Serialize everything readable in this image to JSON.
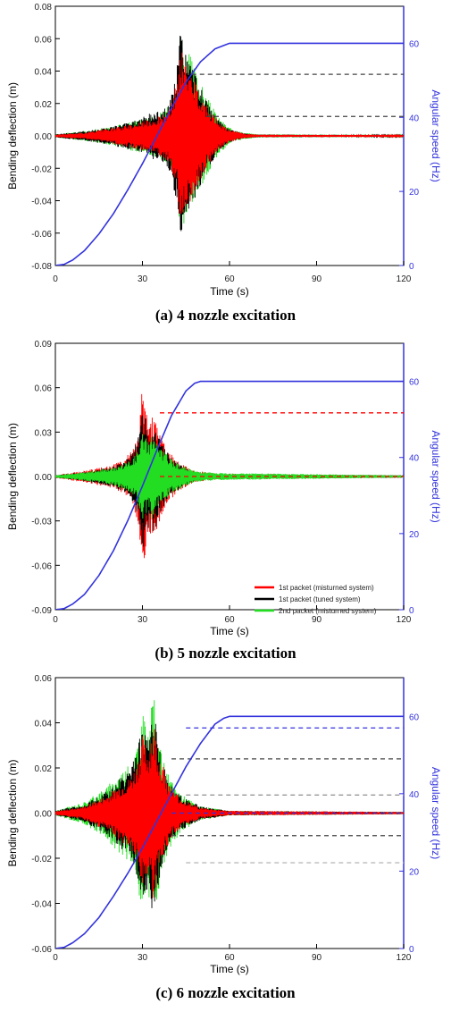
{
  "chart_data": [
    {
      "type": "line",
      "caption": "(a) 4 nozzle excitation",
      "xlabel": "Time (s)",
      "ylabel": "Bending deflection (m)",
      "y2label": "Angular speed (Hz)",
      "xlim": [
        0,
        120
      ],
      "ylim": [
        -0.08,
        0.08
      ],
      "y2lim": [
        0,
        70
      ],
      "xticks": [
        "0",
        "30",
        "60",
        "90",
        "120"
      ],
      "yticks": [
        "-0.08",
        "-0.06",
        "-0.04",
        "-0.02",
        "0.00",
        "0.02",
        "0.04",
        "0.06",
        "0.08"
      ],
      "y2ticks": [
        "0",
        "20",
        "40",
        "60"
      ],
      "legend": [],
      "series": [
        {
          "role": "deflection-envelope",
          "color": "#22dd22",
          "x": [
            0,
            10,
            20,
            28,
            34,
            38,
            40,
            42,
            43,
            44,
            46,
            48,
            52,
            56,
            60,
            65,
            70,
            120
          ],
          "y": [
            0.001,
            0.003,
            0.006,
            0.01,
            0.013,
            0.016,
            0.022,
            0.04,
            0.066,
            0.06,
            0.052,
            0.042,
            0.025,
            0.012,
            0.005,
            0.002,
            0.001,
            0.0005
          ]
        },
        {
          "role": "deflection-envelope",
          "color": "#000000",
          "x": [
            0,
            10,
            20,
            28,
            34,
            38,
            40,
            42,
            43,
            44,
            46,
            48,
            52,
            56,
            60,
            65,
            70,
            120
          ],
          "y": [
            0.001,
            0.003,
            0.006,
            0.01,
            0.015,
            0.018,
            0.025,
            0.045,
            0.07,
            0.06,
            0.05,
            0.04,
            0.022,
            0.01,
            0.004,
            0.0015,
            0.0008,
            0.0005
          ]
        },
        {
          "role": "deflection-envelope",
          "color": "#ff0000",
          "x": [
            0,
            10,
            20,
            28,
            34,
            38,
            40,
            42,
            43,
            44,
            46,
            48,
            52,
            56,
            60,
            65,
            70,
            120
          ],
          "y": [
            0.0008,
            0.002,
            0.005,
            0.008,
            0.011,
            0.014,
            0.02,
            0.035,
            0.055,
            0.05,
            0.043,
            0.035,
            0.02,
            0.009,
            0.004,
            0.0015,
            0.0008,
            0.0005
          ]
        },
        {
          "role": "angular-speed",
          "color": "#3333dd",
          "x": [
            0,
            3,
            6,
            10,
            15,
            20,
            25,
            30,
            35,
            40,
            45,
            50,
            55,
            60,
            120
          ],
          "y": [
            0,
            0.3,
            1.5,
            4,
            8.5,
            14,
            20.5,
            27.5,
            35,
            42.5,
            49.5,
            55,
            58.5,
            60,
            60
          ]
        }
      ],
      "dashed_lines": [
        {
          "y": 0.038,
          "x_start": 47,
          "x_end": 120,
          "color": "#444444"
        },
        {
          "y": 0.012,
          "x_start": 52,
          "x_end": 120,
          "color": "#444444"
        }
      ]
    },
    {
      "type": "line",
      "caption": "(b) 5 nozzle excitation",
      "xlabel": "Time (s)",
      "ylabel": "Bending deflection (m)",
      "y2label": "Angular speed (Hz)",
      "xlim": [
        0,
        120
      ],
      "ylim": [
        -0.09,
        0.09
      ],
      "y2lim": [
        0,
        70
      ],
      "xticks": [
        "0",
        "30",
        "60",
        "90",
        "120"
      ],
      "yticks": [
        "-0.09",
        "-0.06",
        "-0.03",
        "0.00",
        "0.03",
        "0.06",
        "0.09"
      ],
      "y2ticks": [
        "0",
        "20",
        "40",
        "60"
      ],
      "legend": [
        "1st packet (misturned system)",
        "1st packet (tuned system)",
        "2nd packet (misturned system)"
      ],
      "series": [
        {
          "role": "deflection-envelope",
          "color": "#ff0000",
          "name": "1st packet (misturned system)",
          "x": [
            0,
            10,
            20,
            24,
            27,
            29,
            30,
            31,
            32,
            33,
            34,
            35,
            36,
            38,
            40,
            44,
            48,
            55,
            120
          ],
          "y": [
            0.001,
            0.004,
            0.008,
            0.012,
            0.02,
            0.04,
            0.07,
            0.05,
            0.035,
            0.04,
            0.045,
            0.035,
            0.03,
            0.02,
            0.015,
            0.008,
            0.004,
            0.002,
            0.0008
          ]
        },
        {
          "role": "deflection-envelope",
          "color": "#000000",
          "name": "1st packet (tuned system)",
          "x": [
            0,
            10,
            20,
            24,
            27,
            29,
            30,
            31,
            32,
            33,
            34,
            35,
            36,
            38,
            40,
            44,
            48,
            55,
            120
          ],
          "y": [
            0.0008,
            0.003,
            0.007,
            0.011,
            0.018,
            0.03,
            0.05,
            0.045,
            0.035,
            0.03,
            0.04,
            0.032,
            0.025,
            0.018,
            0.012,
            0.007,
            0.003,
            0.0015,
            0.0008
          ]
        },
        {
          "role": "deflection-envelope",
          "color": "#22dd22",
          "name": "2nd packet (misturned system)",
          "x": [
            0,
            10,
            20,
            24,
            27,
            29,
            30,
            31,
            32,
            33,
            34,
            35,
            36,
            38,
            40,
            44,
            48,
            55,
            120
          ],
          "y": [
            0.0008,
            0.003,
            0.006,
            0.009,
            0.013,
            0.02,
            0.03,
            0.028,
            0.025,
            0.028,
            0.03,
            0.022,
            0.02,
            0.016,
            0.012,
            0.007,
            0.004,
            0.0025,
            0.0008
          ]
        },
        {
          "role": "angular-speed",
          "color": "#3333dd",
          "x": [
            0,
            3,
            6,
            10,
            15,
            20,
            25,
            30,
            35,
            40,
            45,
            48,
            50,
            120
          ],
          "y": [
            0,
            0.3,
            1.5,
            4,
            9,
            15.5,
            23.5,
            32.5,
            42,
            51,
            57.5,
            59.5,
            60,
            60
          ]
        }
      ],
      "dashed_lines": [
        {
          "y": 0.043,
          "x_start": 36,
          "x_end": 120,
          "color": "#ff0000"
        },
        {
          "y": 0.0,
          "x_start": 36,
          "x_end": 120,
          "color": "#ff0000"
        }
      ]
    },
    {
      "type": "line",
      "caption": "(c) 6 nozzle excitation",
      "xlabel": "Time (s)",
      "ylabel": "Bending deflection (m)",
      "y2label": "Angular speed (Hz)",
      "xlim": [
        0,
        120
      ],
      "ylim": [
        -0.06,
        0.06
      ],
      "y2lim": [
        0,
        70
      ],
      "xticks": [
        "0",
        "30",
        "60",
        "90",
        "120"
      ],
      "yticks": [
        "-0.06",
        "-0.04",
        "-0.02",
        "0.00",
        "0.02",
        "0.04",
        "0.06"
      ],
      "y2ticks": [
        "0",
        "20",
        "40",
        "60"
      ],
      "legend": [],
      "series": [
        {
          "role": "deflection-envelope",
          "color": "#22dd22",
          "x": [
            0,
            10,
            18,
            22,
            26,
            28,
            30,
            31,
            32,
            33,
            34,
            35,
            36,
            38,
            40,
            44,
            50,
            60,
            120
          ],
          "y": [
            0.001,
            0.005,
            0.012,
            0.018,
            0.022,
            0.03,
            0.045,
            0.04,
            0.035,
            0.046,
            0.052,
            0.04,
            0.03,
            0.02,
            0.014,
            0.008,
            0.003,
            0.001,
            0.0005
          ]
        },
        {
          "role": "deflection-envelope",
          "color": "#000000",
          "x": [
            0,
            10,
            18,
            22,
            26,
            28,
            30,
            31,
            32,
            33,
            34,
            35,
            36,
            38,
            40,
            44,
            50,
            60,
            120
          ],
          "y": [
            0.001,
            0.004,
            0.01,
            0.015,
            0.02,
            0.028,
            0.04,
            0.036,
            0.033,
            0.042,
            0.046,
            0.036,
            0.028,
            0.018,
            0.012,
            0.007,
            0.003,
            0.001,
            0.0005
          ]
        },
        {
          "role": "deflection-envelope",
          "color": "#ff0000",
          "x": [
            0,
            10,
            18,
            22,
            26,
            28,
            30,
            31,
            32,
            33,
            34,
            35,
            36,
            38,
            40,
            44,
            50,
            60,
            120
          ],
          "y": [
            0.0008,
            0.003,
            0.008,
            0.012,
            0.016,
            0.022,
            0.034,
            0.03,
            0.028,
            0.036,
            0.04,
            0.032,
            0.026,
            0.017,
            0.011,
            0.006,
            0.0025,
            0.001,
            0.0005
          ]
        },
        {
          "role": "angular-speed",
          "color": "#3333dd",
          "x": [
            0,
            3,
            6,
            10,
            15,
            20,
            25,
            30,
            35,
            40,
            45,
            50,
            55,
            58,
            60,
            120
          ],
          "y": [
            0,
            0.3,
            1.5,
            3.8,
            8,
            13.5,
            19.5,
            26,
            33,
            40,
            47,
            53,
            58,
            59.5,
            60,
            60
          ]
        }
      ],
      "dashed_lines": [
        {
          "y": 0.0,
          "x_start": 40,
          "x_end": 120,
          "color": "#3333dd",
          "note": ""
        },
        {
          "y": 0.024,
          "x_start": 40,
          "x_end": 120,
          "color": "#444444"
        },
        {
          "y": 0.008,
          "x_start": 45,
          "x_end": 120,
          "color": "#999999"
        },
        {
          "y": -0.01,
          "x_start": 40,
          "x_end": 120,
          "color": "#444444"
        },
        {
          "y": -0.022,
          "x_start": 45,
          "x_end": 120,
          "color": "#bbbbbb"
        }
      ],
      "y2_dashed_lines": [
        {
          "y2": 57,
          "x_start": 45,
          "x_end": 120,
          "color": "#3333dd"
        }
      ]
    }
  ]
}
